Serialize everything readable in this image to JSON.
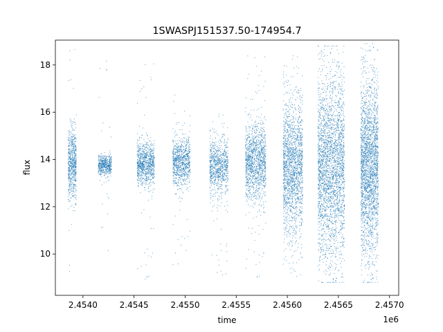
{
  "chart_data": {
    "type": "scatter",
    "title": "1SWASPJ151537.50-174954.7",
    "xlabel": "time",
    "ylabel": "flux",
    "x_offset_label": "1e6",
    "xlim": [
      2453730,
      2457090
    ],
    "ylim": [
      8.25,
      19.05
    ],
    "x_ticks": [
      2454000,
      2454500,
      2455000,
      2455500,
      2456000,
      2456500,
      2457000
    ],
    "x_tick_labels": [
      "2.4540",
      "2.4545",
      "2.4550",
      "2.4555",
      "2.4560",
      "2.4565",
      "2.4570"
    ],
    "y_ticks": [
      10,
      12,
      14,
      16,
      18
    ],
    "y_tick_labels": [
      "10",
      "12",
      "14",
      "16",
      "18"
    ],
    "grid": false,
    "marker_color": "#1f77b4",
    "series": [
      {
        "seasons": [
          {
            "start": 2453855,
            "end": 2453935,
            "center": 13.8,
            "sd": 0.75,
            "n": 650,
            "outlier_min": 8.9,
            "outlier_max": 18.9
          },
          {
            "start": 2454150,
            "end": 2454280,
            "center": 13.75,
            "sd": 0.22,
            "n": 500,
            "outlier_min": 9.8,
            "outlier_max": 18.6
          },
          {
            "start": 2454530,
            "end": 2454700,
            "center": 13.8,
            "sd": 0.45,
            "n": 900,
            "outlier_min": 8.9,
            "outlier_max": 18.3
          },
          {
            "start": 2454880,
            "end": 2455050,
            "center": 13.9,
            "sd": 0.5,
            "n": 850,
            "outlier_min": 9.0,
            "outlier_max": 16.9
          },
          {
            "start": 2455240,
            "end": 2455420,
            "center": 13.7,
            "sd": 0.6,
            "n": 850,
            "outlier_min": 9.0,
            "outlier_max": 16.0
          },
          {
            "start": 2455590,
            "end": 2455790,
            "center": 13.9,
            "sd": 0.8,
            "n": 1300,
            "outlier_min": 8.9,
            "outlier_max": 18.6
          },
          {
            "start": 2455960,
            "end": 2456150,
            "center": 13.7,
            "sd": 1.4,
            "n": 1800,
            "outlier_min": 8.9,
            "outlier_max": 18.5
          },
          {
            "start": 2456300,
            "end": 2456560,
            "center": 13.7,
            "sd": 1.9,
            "n": 2800,
            "outlier_min": 8.8,
            "outlier_max": 18.8
          },
          {
            "start": 2456720,
            "end": 2456890,
            "center": 13.7,
            "sd": 1.8,
            "n": 2400,
            "outlier_min": 8.8,
            "outlier_max": 18.9
          }
        ]
      }
    ]
  }
}
